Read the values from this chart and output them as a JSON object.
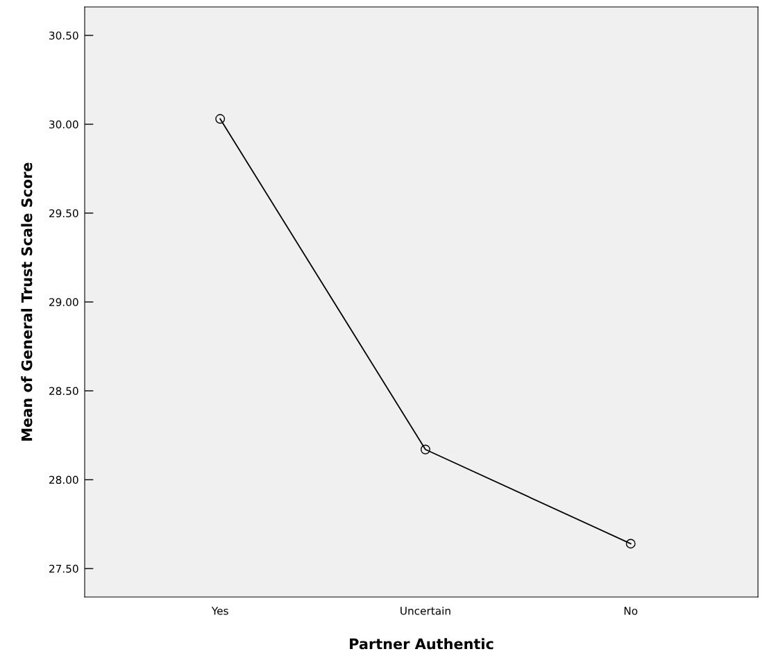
{
  "chart_data": {
    "type": "line",
    "xlabel": "Partner Authentic",
    "ylabel": "Mean of General Trust Scale Score",
    "categories": [
      "Yes",
      "Uncertain",
      "No"
    ],
    "series": [
      {
        "color": "#000000",
        "values": [
          30.03,
          28.17,
          27.64
        ]
      }
    ],
    "ylim": [
      27.34,
      30.66
    ],
    "yticks": [
      {
        "value": 27.5,
        "label": "27.50"
      },
      {
        "value": 28.0,
        "label": "28.00"
      },
      {
        "value": 28.5,
        "label": "28.50"
      },
      {
        "value": 29.0,
        "label": "29.00"
      },
      {
        "value": 29.5,
        "label": "29.50"
      },
      {
        "value": 30.0,
        "label": "30.00"
      },
      {
        "value": 30.5,
        "label": "30.50"
      }
    ],
    "marker": "circle",
    "line_style": "solid",
    "grid": false,
    "legend": false
  }
}
